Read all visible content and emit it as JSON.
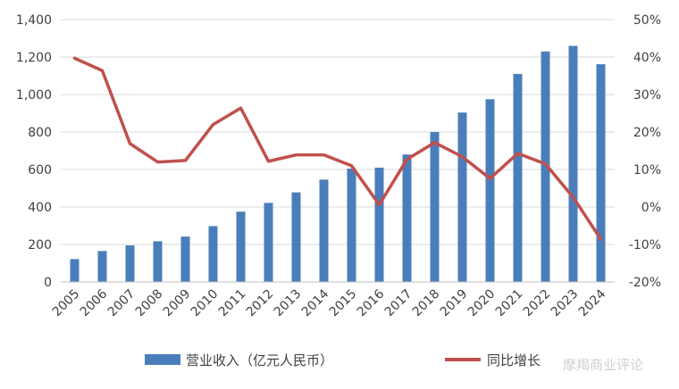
{
  "chart_data": {
    "type": "bar",
    "categories": [
      "2005",
      "2006",
      "2007",
      "2008",
      "2009",
      "2010",
      "2011",
      "2012",
      "2013",
      "2014",
      "2015",
      "2016",
      "2017",
      "2018",
      "2019",
      "2020",
      "2021",
      "2022",
      "2023",
      "2024"
    ],
    "series": [
      {
        "name": "营业收入（亿元人民币）",
        "type": "bar",
        "axis": "left",
        "color": "#4a7ebb",
        "values": [
          122,
          165,
          195,
          217,
          242,
          298,
          375,
          422,
          478,
          546,
          605,
          610,
          680,
          800,
          904,
          975,
          1110,
          1230,
          1260,
          1162
        ]
      },
      {
        "name": "同比增长",
        "type": "line",
        "axis": "right",
        "color": "#c0504d",
        "values": [
          39.7,
          36.4,
          16.9,
          12.0,
          12.4,
          22.0,
          26.4,
          12.2,
          13.9,
          13.9,
          11.0,
          0.6,
          12.7,
          17.2,
          13.4,
          7.6,
          14.3,
          11.5,
          2.6,
          -8.6
        ]
      }
    ],
    "y_left": {
      "min": 0,
      "max": 1400,
      "step": 200,
      "ticks": [
        "0",
        "200",
        "400",
        "600",
        "800",
        "1,000",
        "1,200",
        "1,400"
      ]
    },
    "y_right": {
      "min": -20,
      "max": 50,
      "step": 10,
      "ticks": [
        "-20%",
        "-10%",
        "0%",
        "10%",
        "20%",
        "30%",
        "40%",
        "50%"
      ]
    },
    "grid": true,
    "legend_position": "bottom",
    "watermark": "摩羯商业评论"
  }
}
